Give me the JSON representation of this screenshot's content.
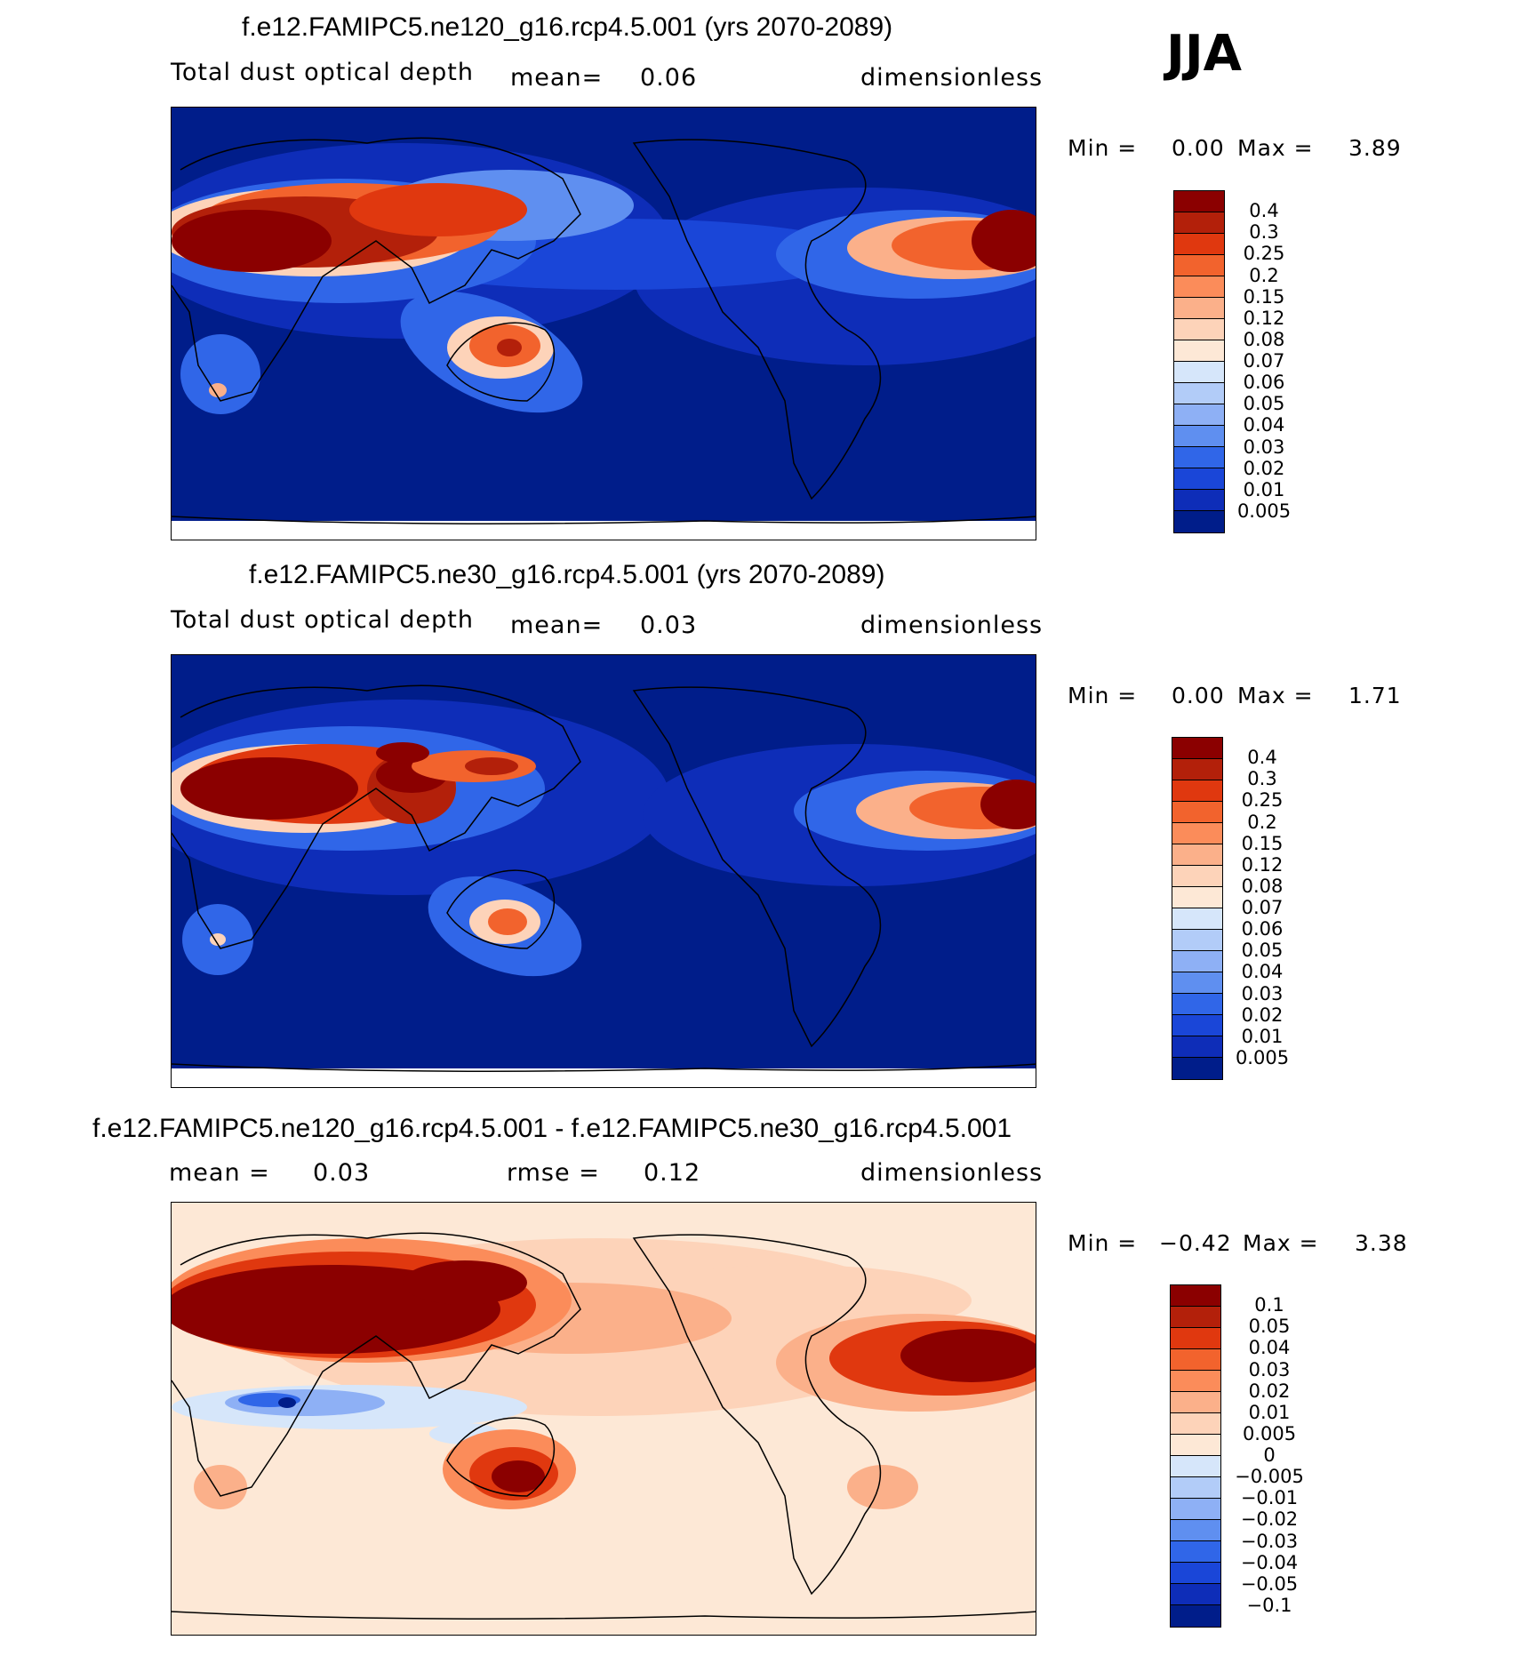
{
  "season": "JJA",
  "panels": [
    {
      "title": "f.e12.FAMIPC5.ne120_g16.rcp4.5.001 (yrs 2070-2089)",
      "variable": "Total dust optical depth",
      "stat1": "mean=",
      "stat1_value": "0.06",
      "units": "dimensionless",
      "min_label": "Min =",
      "min_value": "0.00",
      "max_label": "Max =",
      "max_value": "3.89",
      "levels": [
        "0.4",
        "0.3",
        "0.25",
        "0.2",
        "0.15",
        "0.12",
        "0.08",
        "0.07",
        "0.06",
        "0.05",
        "0.04",
        "0.03",
        "0.02",
        "0.01",
        "0.005"
      ],
      "colors": [
        "#8b0000",
        "#b3200a",
        "#e0380f",
        "#f2632d",
        "#fb8c5a",
        "#fbb08a",
        "#fdd3b9",
        "#fde8d6",
        "#d6e6fa",
        "#b2ccf8",
        "#8eb0f5",
        "#5f8ff0",
        "#3066e8",
        "#1a46d8",
        "#0e2db8",
        "#001d8a"
      ]
    },
    {
      "title": "f.e12.FAMIPC5.ne30_g16.rcp4.5.001 (yrs 2070-2089)",
      "variable": "Total dust optical depth",
      "stat1": "mean=",
      "stat1_value": "0.03",
      "units": "dimensionless",
      "min_label": "Min =",
      "min_value": "0.00",
      "max_label": "Max =",
      "max_value": "1.71",
      "levels": [
        "0.4",
        "0.3",
        "0.25",
        "0.2",
        "0.15",
        "0.12",
        "0.08",
        "0.07",
        "0.06",
        "0.05",
        "0.04",
        "0.03",
        "0.02",
        "0.01",
        "0.005"
      ],
      "colors": [
        "#8b0000",
        "#b3200a",
        "#e0380f",
        "#f2632d",
        "#fb8c5a",
        "#fbb08a",
        "#fdd3b9",
        "#fde8d6",
        "#d6e6fa",
        "#b2ccf8",
        "#8eb0f5",
        "#5f8ff0",
        "#3066e8",
        "#1a46d8",
        "#0e2db8",
        "#001d8a"
      ]
    },
    {
      "title": "f.e12.FAMIPC5.ne120_g16.rcp4.5.001 - f.e12.FAMIPC5.ne30_g16.rcp4.5.001",
      "variable": "",
      "stat1": "mean =",
      "stat1_value": "0.03",
      "stat2": "rmse =",
      "stat2_value": "0.12",
      "units": "dimensionless",
      "min_label": "Min =",
      "min_value": "−0.42",
      "max_label": "Max =",
      "max_value": "3.38",
      "levels": [
        "0.1",
        "0.05",
        "0.04",
        "0.03",
        "0.02",
        "0.01",
        "0.005",
        "0",
        "−0.005",
        "−0.01",
        "−0.02",
        "−0.03",
        "−0.04",
        "−0.05",
        "−0.1"
      ],
      "colors": [
        "#8b0000",
        "#b3200a",
        "#e0380f",
        "#f2632d",
        "#fb8c5a",
        "#fbb08a",
        "#fdd3b9",
        "#fde8d6",
        "#d6e6fa",
        "#b2ccf8",
        "#8eb0f5",
        "#5f8ff0",
        "#3066e8",
        "#1a46d8",
        "#0e2db8",
        "#001d8a"
      ]
    }
  ]
}
